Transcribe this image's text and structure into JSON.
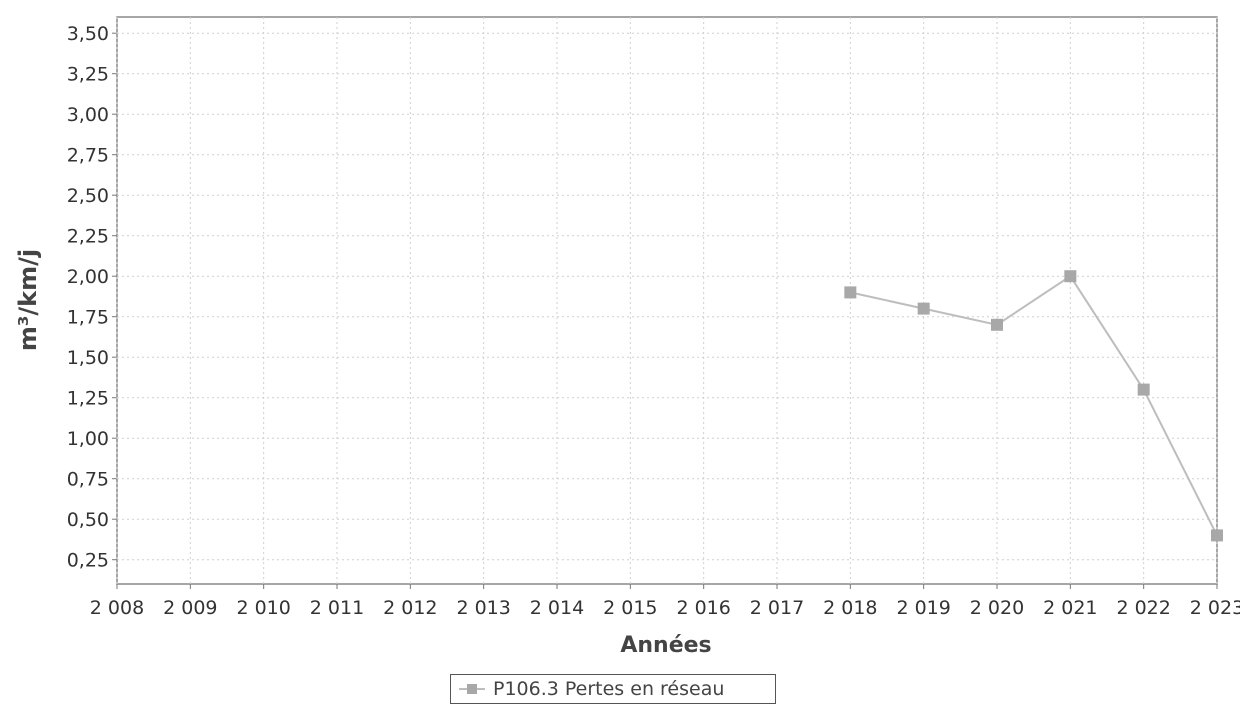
{
  "chart_data": {
    "type": "line",
    "xlabel": "Années",
    "ylabel": "m³/km/j",
    "x_ticks": [
      "2 008",
      "2 009",
      "2 010",
      "2 011",
      "2 012",
      "2 013",
      "2 014",
      "2 015",
      "2 016",
      "2 017",
      "2 018",
      "2 019",
      "2 020",
      "2 021",
      "2 022",
      "2 023"
    ],
    "y_ticks": [
      "0,25",
      "0,50",
      "0,75",
      "1,00",
      "1,25",
      "1,50",
      "1,75",
      "2,00",
      "2,25",
      "2,50",
      "2,75",
      "3,00",
      "3,25",
      "3,50"
    ],
    "xlim": [
      2008,
      2023
    ],
    "ylim": [
      0.1,
      3.6
    ],
    "grid": true,
    "legend_position": "bottom-center",
    "series": [
      {
        "name": "P106.3 Pertes en réseau",
        "color": "#a8a8a8",
        "x": [
          2018,
          2019,
          2020,
          2021,
          2022,
          2023
        ],
        "y": [
          1.9,
          1.8,
          1.7,
          2.0,
          1.3,
          0.4
        ]
      }
    ]
  }
}
